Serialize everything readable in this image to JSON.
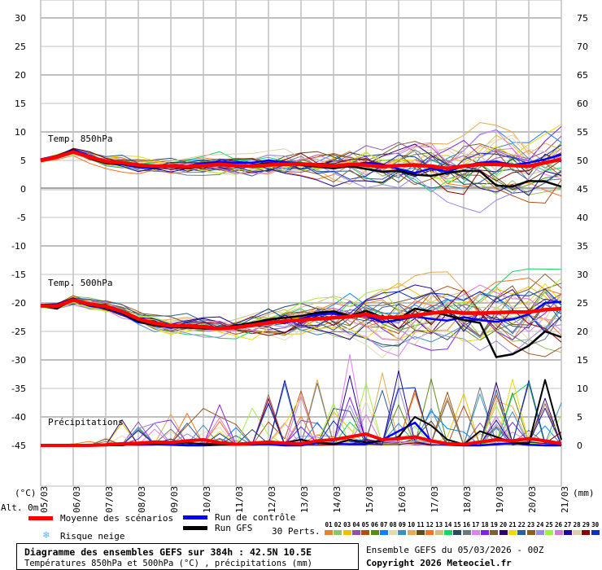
{
  "chart_data": {
    "type": "line",
    "title": "Diagramme des ensembles GEFS sur 384h : 42.5N 10.5E",
    "subtitle": "Températures 850hPa et 500hPa (°C) , précipitations (mm)",
    "run_info": "Ensemble GEFS du 05/03/2026 - 00Z",
    "copyright": "Copyright 2026 Meteociel.fr",
    "left_unit": "(°C)",
    "right_unit": "(mm)",
    "alt_label": "Alt. 0m",
    "left_ticks": [
      "30",
      "25",
      "20",
      "15",
      "10",
      "5",
      "0",
      "-5",
      "-10",
      "-15",
      "-20",
      "-25",
      "-30",
      "-35",
      "-40",
      "-45"
    ],
    "right_ticks": [
      "75",
      "70",
      "65",
      "60",
      "55",
      "50",
      "45",
      "40",
      "35",
      "30",
      "25",
      "20",
      "15",
      "10",
      "5",
      "0"
    ],
    "ylim_temp": [
      -45,
      30
    ],
    "ylim_precip": [
      0,
      75
    ],
    "x_dates": [
      "05/03",
      "06/03",
      "07/03",
      "08/03",
      "09/03",
      "10/03",
      "11/03",
      "12/03",
      "13/03",
      "14/03",
      "15/03",
      "16/03",
      "17/03",
      "18/03",
      "19/03",
      "20/03",
      "21/03"
    ],
    "x_step_hours": 12,
    "annotations": {
      "t850": "Temp. 850hPa",
      "t500": "Temp. 500hPa",
      "precip": "Précipitations"
    },
    "legend": {
      "mean": "Moyenne des scénarios",
      "control": "Run de contrôle",
      "gfs": "Run GFS",
      "snow": "Risque neige",
      "perts": "30 Perts."
    },
    "colors": {
      "mean": "#ff0000",
      "control": "#0000ff",
      "gfs": "#000000",
      "snow": "#5ab4f0"
    },
    "pert_ids": [
      "01",
      "02",
      "03",
      "04",
      "05",
      "06",
      "07",
      "08",
      "09",
      "10",
      "11",
      "12",
      "13",
      "14",
      "15",
      "16",
      "17",
      "18",
      "19",
      "20",
      "21",
      "22",
      "23",
      "24",
      "25",
      "26",
      "27",
      "28",
      "29",
      "30"
    ],
    "pert_colors": [
      "#e8812e",
      "#8bc46a",
      "#f0c000",
      "#8e50a8",
      "#b05010",
      "#5a8a10",
      "#0a80ff",
      "#e8d8b0",
      "#3a90c0",
      "#e8a850",
      "#604a20",
      "#ff7020",
      "#d0c080",
      "#10d860",
      "#264860",
      "#6a7880",
      "#e080f0",
      "#8020f0",
      "#806030",
      "#300070",
      "#f0d800",
      "#2a60a0",
      "#905a20",
      "#9888e8",
      "#a0f040",
      "#d878d0",
      "#2000a0",
      "#e0ccaa",
      "#8a0000",
      "#0a30c0"
    ],
    "series": {
      "t850": {
        "mean": [
          5.0,
          5.6,
          6.5,
          5.6,
          4.8,
          4.6,
          4.2,
          4.0,
          4.0,
          3.9,
          4.1,
          4.3,
          4.1,
          4.0,
          4.2,
          4.3,
          4.4,
          4.2,
          4.0,
          4.3,
          4.2,
          3.9,
          4.1,
          4.2,
          4.0,
          3.6,
          4.0,
          4.3,
          4.3,
          4.1,
          4.0,
          4.6,
          5.2
        ],
        "control": [
          5.2,
          5.8,
          6.9,
          5.8,
          4.6,
          4.3,
          3.8,
          3.6,
          4.2,
          4.0,
          4.5,
          4.7,
          4.6,
          4.6,
          5.0,
          4.7,
          4.5,
          4.0,
          3.8,
          4.2,
          4.6,
          4.3,
          3.5,
          2.8,
          3.6,
          3.0,
          4.0,
          4.6,
          4.8,
          4.2,
          4.6,
          5.2,
          6.0
        ],
        "gfs": [
          5.0,
          5.8,
          6.8,
          5.4,
          4.5,
          4.4,
          4.0,
          3.8,
          3.9,
          3.6,
          4.0,
          4.1,
          4.0,
          4.2,
          4.5,
          4.3,
          4.2,
          3.9,
          3.6,
          4.0,
          3.5,
          3.0,
          3.2,
          2.5,
          2.3,
          2.8,
          3.2,
          3.1,
          0.6,
          0.4,
          1.4,
          1.3,
          0.4
        ],
        "spread": [
          0.3,
          0.4,
          0.5,
          0.6,
          0.6,
          0.7,
          0.7,
          0.7,
          0.8,
          0.8,
          0.8,
          0.9,
          0.9,
          1.0,
          1.1,
          1.2,
          1.3,
          1.4,
          1.6,
          1.8,
          2.0,
          2.0,
          2.2,
          2.4,
          2.5,
          2.6,
          2.8,
          3.0,
          3.2,
          3.0,
          3.0,
          3.0,
          3.0
        ]
      },
      "t500": {
        "mean": [
          -20.5,
          -20.6,
          -19.5,
          -20.2,
          -20.6,
          -21.5,
          -22.8,
          -23.6,
          -24.0,
          -24.0,
          -24.2,
          -24.5,
          -24.3,
          -23.9,
          -23.5,
          -23.2,
          -23.0,
          -22.8,
          -22.6,
          -22.4,
          -22.0,
          -22.6,
          -22.5,
          -22.2,
          -21.8,
          -21.5,
          -21.8,
          -21.8,
          -21.7,
          -21.6,
          -21.6,
          -21.2,
          -21.0
        ],
        "control": [
          -20.3,
          -20.8,
          -19.6,
          -20.5,
          -20.9,
          -22.0,
          -23.4,
          -23.8,
          -24.3,
          -24.1,
          -24.0,
          -24.6,
          -24.2,
          -23.5,
          -23.2,
          -23.5,
          -22.8,
          -22.0,
          -21.9,
          -22.4,
          -22.2,
          -23.4,
          -23.0,
          -22.4,
          -22.8,
          -23.1,
          -22.5,
          -23.0,
          -23.3,
          -22.9,
          -22.0,
          -20.0,
          -19.8
        ],
        "gfs": [
          -20.5,
          -21.0,
          -19.3,
          -20.4,
          -20.8,
          -21.8,
          -23.2,
          -24.0,
          -24.2,
          -24.3,
          -24.5,
          -24.6,
          -24.0,
          -23.5,
          -22.9,
          -22.6,
          -22.3,
          -21.7,
          -21.5,
          -22.3,
          -21.4,
          -22.5,
          -22.8,
          -21.0,
          -21.5,
          -22.2,
          -23.0,
          -23.5,
          -29.5,
          -29.0,
          -27.5,
          -25.0,
          -26.0
        ],
        "spread": [
          0.3,
          0.4,
          0.5,
          0.6,
          0.7,
          0.7,
          0.8,
          0.8,
          0.9,
          0.9,
          1.0,
          1.1,
          1.2,
          1.3,
          1.4,
          1.6,
          1.8,
          2.0,
          2.2,
          2.4,
          2.6,
          2.8,
          3.0,
          3.0,
          3.2,
          3.3,
          3.4,
          3.5,
          3.5,
          3.5,
          3.5,
          3.5,
          3.5
        ]
      },
      "precip": {
        "mean": [
          0,
          0,
          0,
          0,
          0.1,
          0.3,
          0.4,
          0.6,
          0.5,
          0.8,
          1.0,
          0.5,
          0.2,
          0.4,
          0.6,
          0.4,
          0.3,
          0.8,
          1.0,
          1.5,
          2.0,
          1.0,
          1.2,
          1.5,
          0.8,
          0.3,
          0.2,
          0.6,
          1.0,
          0.8,
          1.2,
          0.8,
          0.3
        ],
        "control": [
          0,
          0,
          0,
          0,
          0,
          0.2,
          0.3,
          0.2,
          0.1,
          0,
          0,
          0.1,
          0.3,
          0.2,
          0.2,
          0,
          0,
          0.5,
          0.3,
          0.2,
          0.2,
          1.0,
          2.5,
          4.0,
          0.8,
          0.1,
          0,
          0,
          0.2,
          0.4,
          0.1,
          0,
          0
        ],
        "gfs": [
          0,
          0,
          0,
          0,
          0,
          0,
          0.5,
          0.2,
          0.3,
          0.5,
          0.2,
          0.1,
          0.1,
          0.2,
          0.3,
          0.5,
          1.0,
          0.5,
          0.2,
          1.0,
          0.5,
          0.8,
          1.5,
          5.0,
          3.5,
          1.0,
          0.2,
          2.5,
          1.5,
          0.5,
          0.3,
          11.5,
          1.0
        ],
        "spread": [
          0,
          0,
          0.3,
          0.8,
          2,
          5,
          5,
          6,
          6,
          6,
          8,
          8,
          7,
          8,
          9,
          12,
          10,
          12,
          14,
          16,
          14,
          14,
          14,
          12,
          12,
          10,
          10,
          12,
          12,
          12,
          12,
          10,
          8
        ]
      }
    }
  }
}
